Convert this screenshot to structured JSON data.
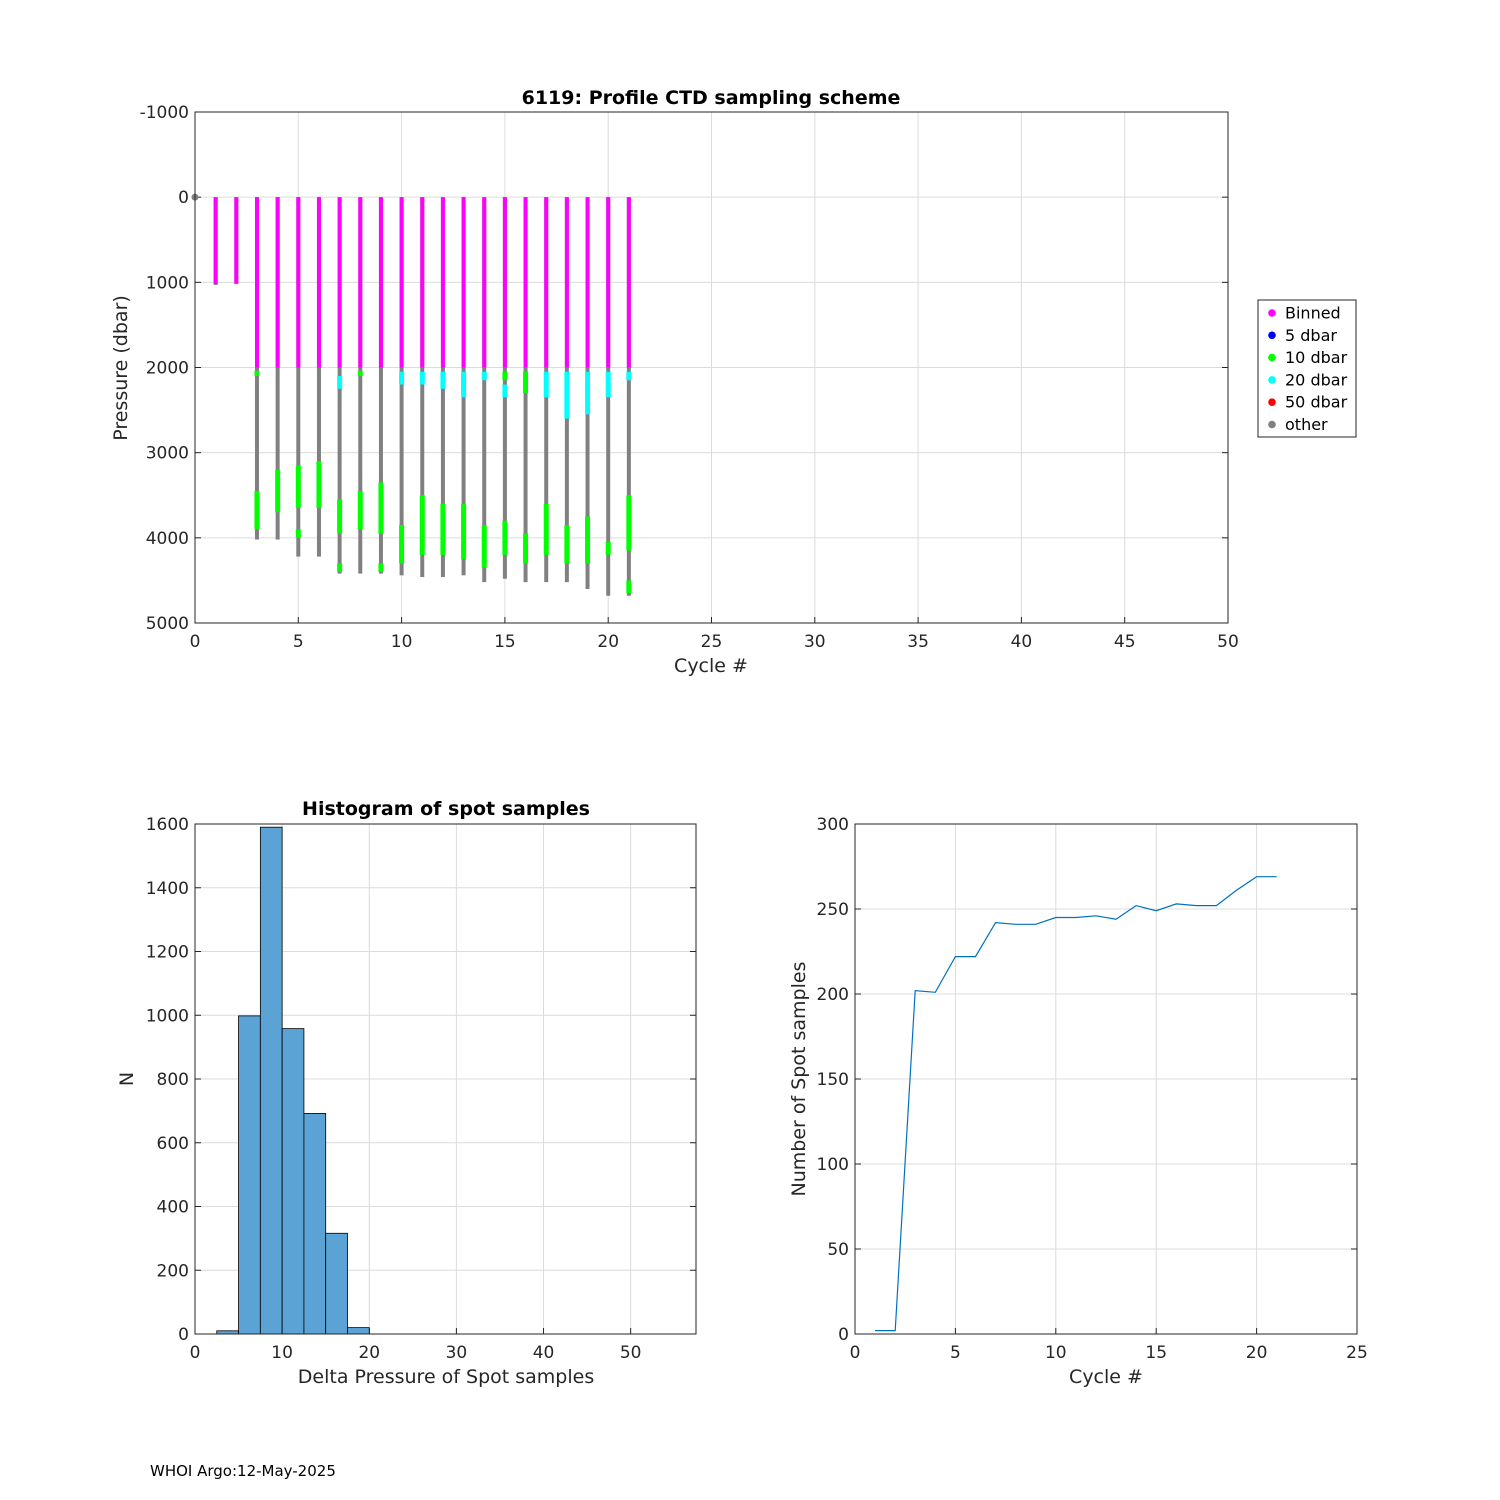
{
  "chart_data": [
    {
      "type": "scatter",
      "title": "6119: Profile CTD sampling scheme",
      "xlabel": "Cycle #",
      "ylabel": "Pressure (dbar)",
      "xlim": [
        0,
        50
      ],
      "ylim": [
        -1000,
        5000
      ],
      "y_reversed": true,
      "grid": true,
      "x_ticks": [
        "0",
        "5",
        "10",
        "15",
        "20",
        "25",
        "30",
        "35",
        "40",
        "45",
        "50"
      ],
      "y_ticks": [
        "-1000",
        "0",
        "1000",
        "2000",
        "3000",
        "4000",
        "5000"
      ],
      "legend": {
        "placement": "outside-right",
        "entries": [
          {
            "label": "Binned",
            "color": "#ff00ff"
          },
          {
            "label": "5 dbar",
            "color": "#0000ff"
          },
          {
            "label": "10 dbar",
            "color": "#00ff00"
          },
          {
            "label": "20 dbar",
            "color": "#00ffff"
          },
          {
            "label": "50 dbar",
            "color": "#ff0000"
          },
          {
            "label": "other",
            "color": "#808080"
          }
        ]
      },
      "profiles": [
        {
          "cycle": 0,
          "binned": [
            0,
            0
          ],
          "max_pressure": 0
        },
        {
          "cycle": 1,
          "binned": [
            0,
            1020
          ],
          "max_pressure": 1030
        },
        {
          "cycle": 2,
          "binned": [
            0,
            1010
          ],
          "max_pressure": 1020
        },
        {
          "cycle": 3,
          "binned": [
            0,
            2000
          ],
          "max_pressure": 4020,
          "dbar10": [
            [
              2040,
              2100
            ],
            [
              3450,
              3900
            ]
          ],
          "dbar20": []
        },
        {
          "cycle": 4,
          "binned": [
            0,
            2000
          ],
          "max_pressure": 4020,
          "dbar10": [
            [
              3200,
              3700
            ]
          ],
          "dbar20": []
        },
        {
          "cycle": 5,
          "binned": [
            0,
            2000
          ],
          "max_pressure": 4220,
          "dbar10": [
            [
              3150,
              3650
            ],
            [
              3900,
              4000
            ]
          ],
          "dbar20": []
        },
        {
          "cycle": 6,
          "binned": [
            0,
            2000
          ],
          "max_pressure": 4220,
          "dbar10": [
            [
              3100,
              3650
            ]
          ],
          "dbar20": []
        },
        {
          "cycle": 7,
          "binned": [
            0,
            2000
          ],
          "max_pressure": 4420,
          "dbar10": [
            [
              3550,
              3950
            ],
            [
              4300,
              4400
            ]
          ],
          "dbar20": [
            [
              2100,
              2250
            ]
          ]
        },
        {
          "cycle": 8,
          "binned": [
            0,
            2000
          ],
          "max_pressure": 4420,
          "dbar10": [
            [
              2040,
              2100
            ],
            [
              3450,
              3900
            ]
          ],
          "dbar20": []
        },
        {
          "cycle": 9,
          "binned": [
            0,
            2000
          ],
          "max_pressure": 4420,
          "dbar10": [
            [
              3350,
              3950
            ],
            [
              4300,
              4400
            ]
          ],
          "dbar20": []
        },
        {
          "cycle": 10,
          "binned": [
            0,
            2000
          ],
          "max_pressure": 4440,
          "dbar10": [
            [
              3850,
              4300
            ]
          ],
          "dbar20": [
            [
              2050,
              2200
            ]
          ]
        },
        {
          "cycle": 11,
          "binned": [
            0,
            2000
          ],
          "max_pressure": 4460,
          "dbar10": [
            [
              3500,
              4200
            ]
          ],
          "dbar20": [
            [
              2050,
              2200
            ]
          ]
        },
        {
          "cycle": 12,
          "binned": [
            0,
            2000
          ],
          "max_pressure": 4460,
          "dbar10": [
            [
              3600,
              4200
            ]
          ],
          "dbar20": [
            [
              2050,
              2250
            ]
          ]
        },
        {
          "cycle": 13,
          "binned": [
            0,
            2000
          ],
          "max_pressure": 4440,
          "dbar10": [
            [
              3600,
              4250
            ]
          ],
          "dbar20": [
            [
              2050,
              2350
            ]
          ]
        },
        {
          "cycle": 14,
          "binned": [
            0,
            2000
          ],
          "max_pressure": 4520,
          "dbar10": [
            [
              3850,
              4350
            ]
          ],
          "dbar20": [
            [
              2050,
              2150
            ]
          ]
        },
        {
          "cycle": 15,
          "binned": [
            0,
            2000
          ],
          "max_pressure": 4480,
          "dbar10": [
            [
              2050,
              2150
            ],
            [
              3800,
              4200
            ]
          ],
          "dbar20": [
            [
              2200,
              2350
            ]
          ]
        },
        {
          "cycle": 16,
          "binned": [
            0,
            2000
          ],
          "max_pressure": 4520,
          "dbar10": [
            [
              2050,
              2300
            ],
            [
              3950,
              4300
            ]
          ],
          "dbar20": []
        },
        {
          "cycle": 17,
          "binned": [
            0,
            2000
          ],
          "max_pressure": 4520,
          "dbar10": [
            [
              3600,
              4200
            ]
          ],
          "dbar20": [
            [
              2050,
              2350
            ]
          ]
        },
        {
          "cycle": 18,
          "binned": [
            0,
            2000
          ],
          "max_pressure": 4520,
          "dbar10": [
            [
              3850,
              4300
            ]
          ],
          "dbar20": [
            [
              2050,
              2600
            ]
          ]
        },
        {
          "cycle": 19,
          "binned": [
            0,
            2000
          ],
          "max_pressure": 4600,
          "dbar10": [
            [
              3750,
              4300
            ]
          ],
          "dbar20": [
            [
              2050,
              2550
            ]
          ]
        },
        {
          "cycle": 20,
          "binned": [
            0,
            2000
          ],
          "max_pressure": 4680,
          "dbar10": [
            [
              4050,
              4200
            ]
          ],
          "dbar20": [
            [
              2050,
              2350
            ]
          ]
        },
        {
          "cycle": 21,
          "binned": [
            0,
            2000
          ],
          "max_pressure": 4680,
          "dbar10": [
            [
              3500,
              4150
            ],
            [
              4500,
              4650
            ]
          ],
          "dbar20": [
            [
              2050,
              2150
            ]
          ]
        }
      ]
    },
    {
      "type": "bar",
      "title": "Histogram of spot samples",
      "xlabel": "Delta Pressure of Spot samples",
      "ylabel": "N",
      "xlim": [
        0,
        57.5
      ],
      "ylim": [
        0,
        1600
      ],
      "grid": true,
      "bin_width": 2.5,
      "bin_edges": [
        2.5,
        5,
        7.5,
        10,
        12.5,
        15,
        17.5,
        20
      ],
      "values": [
        10,
        998,
        1590,
        958,
        692,
        316,
        20
      ],
      "bar_color": "#5aa3d4",
      "x_ticks": [
        "0",
        "10",
        "20",
        "30",
        "40",
        "50"
      ],
      "y_ticks": [
        "0",
        "200",
        "400",
        "600",
        "800",
        "1000",
        "1200",
        "1400",
        "1600"
      ]
    },
    {
      "type": "line",
      "title": "",
      "xlabel": "Cycle #",
      "ylabel": "Number of Spot samples",
      "xlim": [
        0,
        25
      ],
      "ylim": [
        0,
        300
      ],
      "grid": true,
      "line_color": "#0072bd",
      "x": [
        1,
        2,
        3,
        4,
        5,
        6,
        7,
        8,
        9,
        10,
        11,
        12,
        13,
        14,
        15,
        16,
        17,
        18,
        19,
        20,
        21
      ],
      "y": [
        2,
        2,
        202,
        201,
        222,
        222,
        242,
        241,
        241,
        245,
        245,
        246,
        244,
        252,
        249,
        253,
        252,
        252,
        261,
        269,
        269
      ],
      "x_ticks": [
        "0",
        "5",
        "10",
        "15",
        "20",
        "25"
      ],
      "y_ticks": [
        "0",
        "50",
        "100",
        "150",
        "200",
        "250",
        "300"
      ]
    }
  ],
  "footer": "WHOI Argo:12-May-2025"
}
